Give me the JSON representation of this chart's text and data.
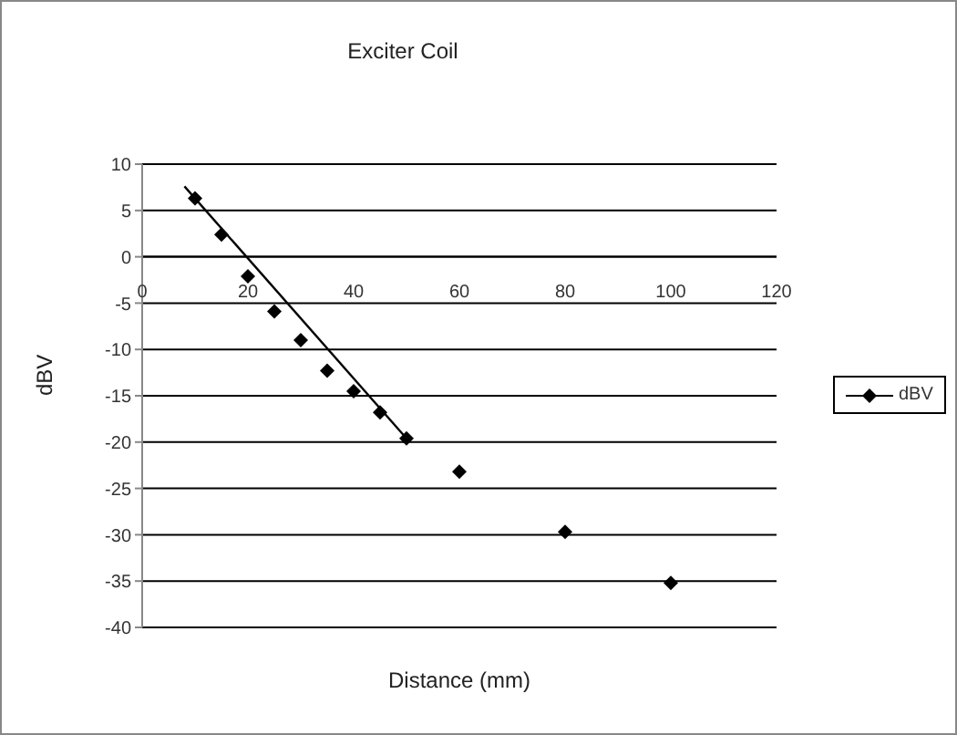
{
  "chart_data": {
    "type": "scatter",
    "title": "Exciter Coil",
    "xlabel": "Distance (mm)",
    "ylabel": "dBV",
    "xlim": [
      0,
      120
    ],
    "xticks": [
      0,
      20,
      40,
      60,
      80,
      100,
      120
    ],
    "ylim": [
      -40,
      10
    ],
    "yticks": [
      -40,
      -35,
      -30,
      -25,
      -20,
      -15,
      -10,
      -5,
      0,
      5,
      10
    ],
    "grid": "y",
    "legend": "right",
    "series": [
      {
        "name": "dBV",
        "color": "#000000",
        "marker": "diamond",
        "x": [
          10,
          15,
          20,
          25,
          30,
          35,
          40,
          45,
          50,
          60,
          80,
          100
        ],
        "values": [
          6.3,
          2.4,
          -2.1,
          -5.9,
          -9,
          -12.3,
          -14.5,
          -16.8,
          -19.6,
          -23.2,
          -29.7,
          -35.2
        ]
      },
      {
        "type": "line",
        "color": "#000000",
        "marker": "none",
        "x": [
          8,
          50
        ],
        "values": [
          7.6,
          -19.6
        ]
      }
    ]
  }
}
